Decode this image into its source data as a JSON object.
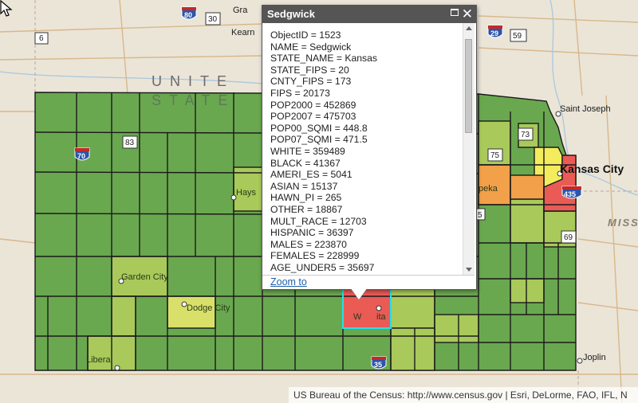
{
  "map": {
    "place_labels": {
      "gra": "Gra",
      "kearn": "Kearn",
      "saint_joseph": "Saint Joseph",
      "kansas_city": "Kansas City",
      "missouri": "MISS",
      "joplin": "Joplin",
      "hays": "Hays",
      "garden_city": "Garden City",
      "dodge_city": "Dodge City",
      "liberal": "Liberal",
      "topeka": "peka",
      "wichita_left": "W",
      "wichita_right": "ita"
    },
    "country_label": "UNITE",
    "country_label2": "STATE",
    "shields": {
      "i80": "80",
      "us30": "30",
      "us6": "6",
      "i29": "29",
      "us59": "59",
      "i70": "70",
      "us83": "83",
      "us73": "73",
      "us75": "75",
      "i435": "435",
      "us69": "69",
      "i35": "35",
      "us5": "5"
    },
    "fill_colors": {
      "low": "#6aa84f",
      "mid": "#a9c95a",
      "midhigh": "#d9e06a",
      "yellow": "#f3ec5c",
      "orange": "#f2a04a",
      "high": "#ea5b56"
    }
  },
  "popup": {
    "title": "Sedgwick",
    "attributes": [
      "ObjectID = 1523",
      "NAME = Sedgwick",
      "STATE_NAME = Kansas",
      "STATE_FIPS = 20",
      "CNTY_FIPS = 173",
      "FIPS = 20173",
      "POP2000 = 452869",
      "POP2007 = 475703",
      "POP00_SQMI = 448.8",
      "POP07_SQMI = 471.5",
      "WHITE = 359489",
      "BLACK = 41367",
      "AMERI_ES = 5041",
      "ASIAN = 15137",
      "HAWN_PI = 265",
      "OTHER = 18867",
      "MULT_RACE = 12703",
      "HISPANIC = 36397",
      "MALES = 223870",
      "FEMALES = 228999",
      "AGE_UNDER5 = 35697"
    ],
    "zoom_link": "Zoom to",
    "icons": {
      "maximize": "maximize-icon",
      "close": "close-icon"
    }
  },
  "attribution": "US Bureau of the Census: http://www.census.gov | Esri, DeLorme, FAO, IFL, N"
}
